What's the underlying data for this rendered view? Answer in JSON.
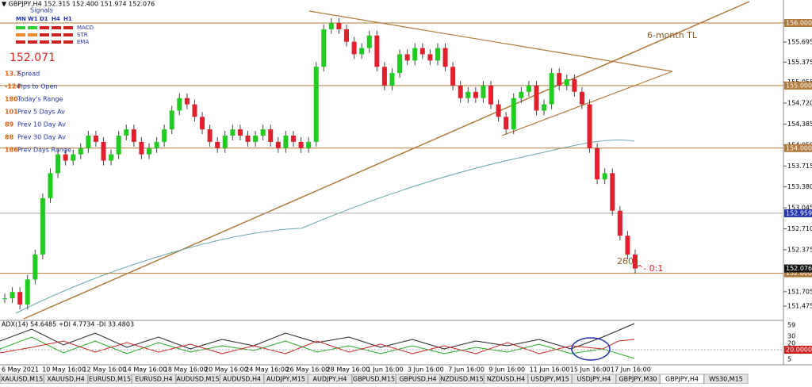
{
  "header": {
    "symbol_line": "▼ GBPJPY,H4 152.315 152.400 151.974 152.076",
    "signals": "Signals",
    "timeframes": [
      "MN",
      "W1",
      "D1",
      "H4",
      "H1"
    ],
    "indicators": [
      "MACD",
      "STR",
      "EMA"
    ]
  },
  "panel": {
    "price": "152.071",
    "rows": [
      {
        "value": "13.7",
        "label": "Spread"
      },
      {
        "value": "-124",
        "label": "Pips to Open"
      },
      {
        "value": "180",
        "label": "Today's Range"
      },
      {
        "value": "101",
        "label": "Prev 5 Days Av"
      },
      {
        "value": "89",
        "label": "Prev 10 Day Av"
      },
      {
        "value": "88",
        "label": "Prev 30 Day Av"
      },
      {
        "value": "186",
        "label": "Prev Days Range"
      }
    ]
  },
  "annotations": {
    "trendline": "6-month TL",
    "count": "260",
    "marker": "^- 0:1"
  },
  "price_axis": {
    "ylim": [
      151.475,
      156.0
    ],
    "ticks": [
      {
        "value": 156.0,
        "label": "156.000"
      },
      {
        "value": 155.695,
        "label": "155.695"
      },
      {
        "value": 155.375,
        "label": "155.375"
      },
      {
        "value": 155.055,
        "label": "155.055"
      },
      {
        "value": 154.72,
        "label": "154.720"
      },
      {
        "value": 154.385,
        "label": "154.385"
      },
      {
        "value": 154.05,
        "label": "154.050"
      },
      {
        "value": 153.715,
        "label": "153.715"
      },
      {
        "value": 153.38,
        "label": "153.380"
      },
      {
        "value": 153.045,
        "label": "153.045"
      },
      {
        "value": 152.71,
        "label": "152.710"
      },
      {
        "value": 152.375,
        "label": "152.375"
      },
      {
        "value": 151.705,
        "label": "151.705"
      },
      {
        "value": 151.475,
        "label": "151.475"
      }
    ],
    "levels": [
      {
        "value": 156.0,
        "label": "156.000"
      },
      {
        "value": 155.0,
        "label": "155.000"
      },
      {
        "value": 154.0,
        "label": "154.000"
      },
      {
        "value": 152.0,
        "label": "152.000"
      }
    ],
    "bid": {
      "value": 152.959,
      "label": "152.959"
    },
    "last": {
      "value": 152.076,
      "label": "152.076"
    }
  },
  "closes": [
    151.6,
    151.7,
    151.5,
    151.9,
    152.3,
    153.2,
    153.6,
    153.9,
    153.8,
    153.9,
    154.0,
    154.2,
    154.1,
    153.8,
    153.9,
    154.2,
    154.3,
    154.1,
    153.9,
    154.0,
    154.1,
    154.3,
    154.6,
    154.8,
    154.7,
    154.5,
    154.3,
    154.1,
    154.0,
    154.2,
    154.3,
    154.2,
    154.1,
    154.2,
    154.3,
    154.1,
    154.0,
    154.2,
    154.1,
    154.0,
    154.1,
    155.3,
    155.9,
    156.0,
    155.9,
    155.7,
    155.5,
    155.6,
    155.8,
    155.3,
    155.0,
    155.2,
    155.5,
    155.4,
    155.6,
    155.5,
    155.4,
    155.6,
    155.3,
    155.0,
    154.8,
    154.9,
    154.8,
    155.0,
    154.7,
    154.5,
    154.3,
    154.8,
    154.9,
    155.0,
    154.6,
    154.7,
    155.2,
    155.0,
    155.1,
    154.9,
    154.7,
    154.0,
    153.5,
    153.6,
    153.0,
    152.6,
    152.3,
    152.076
  ],
  "adx": {
    "label": "ADX(14) 54.6485 +DI 4.7734 -DI 33.4803",
    "ticks": [
      "59",
      "30",
      "20",
      "5"
    ],
    "level": "20.0000"
  },
  "dates": [
    "6 May 2021",
    "10 May 16:00",
    "12 May 16:00",
    "14 May 16:00",
    "18 May 16:00",
    "20 May 16:00",
    "24 May 16:00",
    "26 May 16:00",
    "28 May 16:00",
    "1 Jun 16:00",
    "3 Jun 16:00",
    "7 Jun 16:00",
    "9 Jun 16:00",
    "11 Jun 16:00",
    "15 Jun 16:00",
    "17 Jun 16:00"
  ],
  "tabs": [
    "XAUUSD,M15",
    "XAUUSD,H4",
    "EURUSD,M15",
    "EURUSD,H4",
    "AUDUSD,M15",
    "AUDUSD,H4",
    "AUDJPY,M15",
    "AUDJPY,H4",
    "GBPUSD,M15",
    "GBPUSD,H4",
    "NZDUSD,M15",
    "NZDUSD,H4",
    "USDJPY,M15",
    "USDJPY,H4",
    "GBPJPY,M30",
    "GBPJPY,H4",
    "WS30,M15"
  ],
  "active_tab": 15
}
